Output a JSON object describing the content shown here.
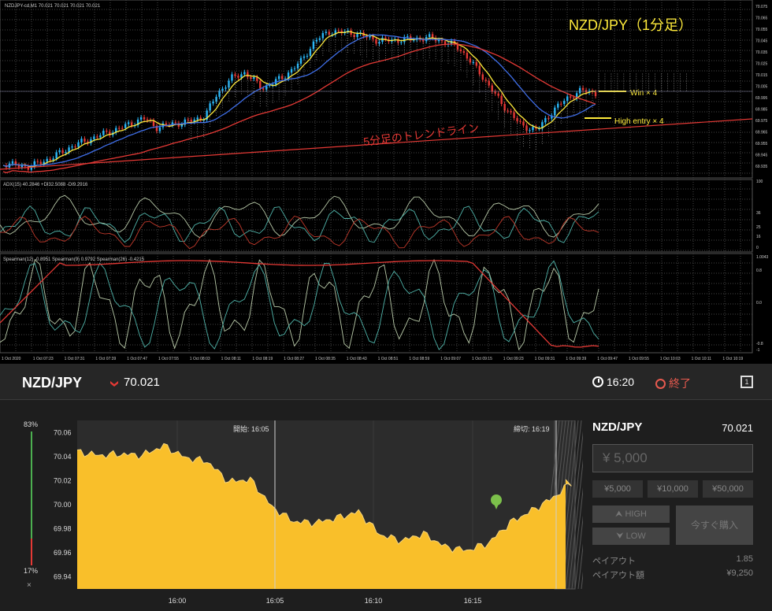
{
  "mt4": {
    "symbol_line": "NZDJPY-cd,M1  70.021 70.021 70.021 70.021",
    "title": "NZD/JPY（1分足）",
    "trendline_label": "5分足のトレンドライン",
    "win_label": "Win × 4",
    "entry_label": "High entry × 4",
    "price_axis": [
      "70.075",
      "70.065",
      "70.055",
      "70.045",
      "70.035",
      "70.025",
      "70.015",
      "70.005",
      "69.995",
      "69.985",
      "69.975",
      "69.965",
      "69.955",
      "69.945",
      "69.935"
    ],
    "adx_label": "ADX(15) 40.2846 +DI32.5088 -DI9.2916",
    "adx_axis": [
      "100",
      "36",
      "25",
      "16",
      "0"
    ],
    "spearman_label": "Spearman(12) -0.8951  Spearman(9) 0.9792  Spearman(26) -0.4215",
    "spearman_axis": [
      "1.0043",
      "0.8",
      "0.0",
      "-0.8",
      "-1"
    ],
    "time_axis": [
      "1 Oct 2020",
      "1 Oct 07:23",
      "1 Oct 07:31",
      "1 Oct 07:39",
      "1 Oct 07:47",
      "1 Oct 07:55",
      "1 Oct 08:03",
      "1 Oct 08:11",
      "1 Oct 08:19",
      "1 Oct 08:27",
      "1 Oct 08:35",
      "1 Oct 08:43",
      "1 Oct 08:51",
      "1 Oct 08:59",
      "1 Oct 09:07",
      "1 Oct 09:15",
      "1 Oct 09:23",
      "1 Oct 09:31",
      "1 Oct 09:39",
      "1 Oct 09:47",
      "1 Oct 09:55",
      "1 Oct 10:03",
      "1 Oct 10:11",
      "1 Oct 10:19"
    ],
    "colors": {
      "up": "#29b6f6",
      "down": "#e53935",
      "ma_fast": "#ffeb3b",
      "ma_mid": "#3f6ee8",
      "ma_slow": "#e53935",
      "label": "#ffeb3b",
      "trend": "#e53935"
    }
  },
  "trade": {
    "pair": "NZD/JPY",
    "price": "70.021",
    "time": "16:20",
    "end_label": "終了",
    "window_icon": "1",
    "gauge_top": "83%",
    "gauge_bottom": "17%",
    "gauge_close": "×",
    "gauge_high_fraction": 0.83,
    "start_label": "開始: 16:05",
    "close_label": "締切: 16:19",
    "y_axis": [
      "70.06",
      "70.04",
      "70.02",
      "70.00",
      "69.98",
      "69.96",
      "69.94"
    ],
    "x_axis": [
      "16:00",
      "16:05",
      "16:10",
      "16:15"
    ],
    "side_pair": "NZD/JPY",
    "side_price": "70.021",
    "amount_placeholder": "¥ 5,000",
    "presets": [
      "¥5,000",
      "¥10,000",
      "¥50,000"
    ],
    "high_label": "HIGH",
    "low_label": "LOW",
    "buy_label": "今すぐ購入",
    "payout_label": "ペイアウト",
    "payout_value": "1.85",
    "payout_amount_label": "ペイアウト額",
    "payout_amount_value": "¥9,250",
    "colors": {
      "fill": "#f9bf2a",
      "line": "#f5d37a",
      "down": "#e53935",
      "marker": "#7cc04b"
    }
  },
  "chart_data": {
    "type": "area",
    "title": "",
    "xlabel": "",
    "ylabel": "",
    "ylim": [
      69.93,
      70.07
    ],
    "x_ticks": [
      "16:00",
      "16:05",
      "16:10",
      "16:15"
    ],
    "x": [
      "15:57",
      "15:58",
      "15:59",
      "16:00",
      "16:01",
      "16:02",
      "16:03",
      "16:04",
      "16:05",
      "16:06",
      "16:07",
      "16:08",
      "16:09",
      "16:10",
      "16:11",
      "16:12",
      "16:13",
      "16:14",
      "16:15",
      "16:16",
      "16:17",
      "16:18",
      "16:19",
      "16:20"
    ],
    "values": [
      70.044,
      70.041,
      70.042,
      70.041,
      70.049,
      70.039,
      70.036,
      70.019,
      70.021,
      69.998,
      69.986,
      69.985,
      69.989,
      69.994,
      69.975,
      69.97,
      69.976,
      69.965,
      69.962,
      69.968,
      69.985,
      69.995,
      70.006,
      70.021
    ]
  }
}
